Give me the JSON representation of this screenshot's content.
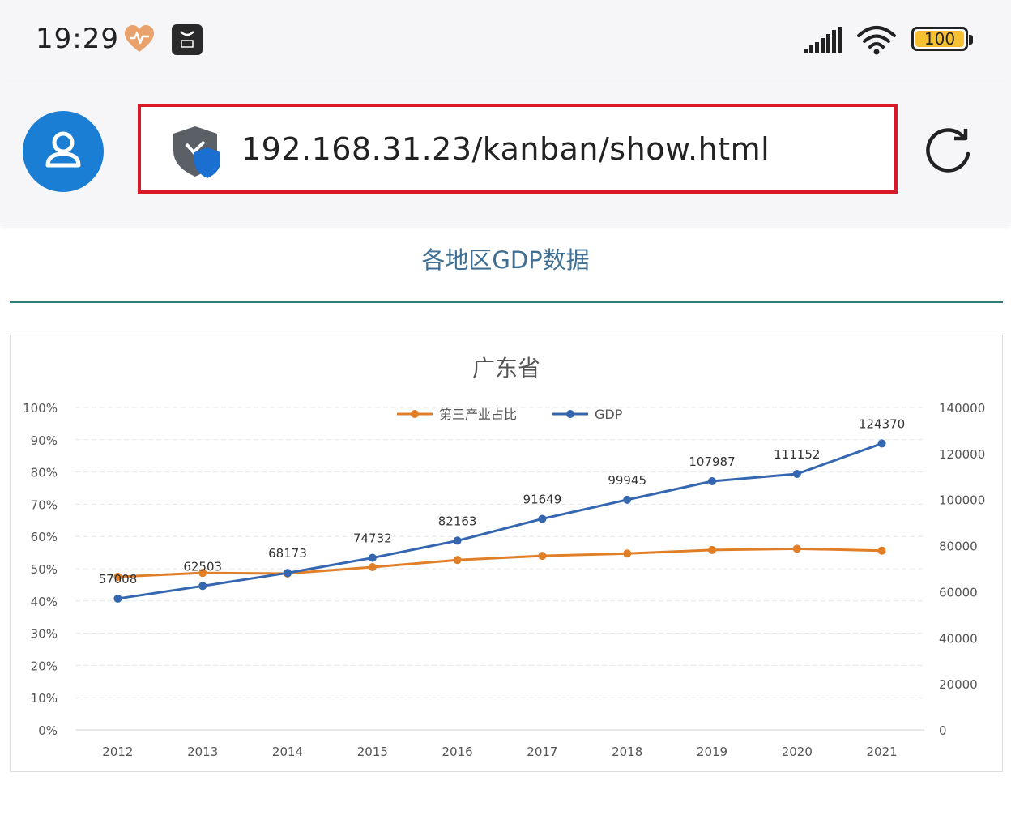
{
  "status_bar": {
    "time": "19:29",
    "battery": "100",
    "icons": [
      "heart-icon",
      "app-store-icon",
      "signal-icon",
      "wifi-icon",
      "battery-icon"
    ]
  },
  "browser": {
    "url": "192.168.31.23/kanban/show.html",
    "icons": [
      "avatar-icon",
      "shield-icon",
      "reload-icon"
    ],
    "url_highlight_color": "#d8192a"
  },
  "page": {
    "heading": "各地区GDP数据"
  },
  "colors": {
    "avatar": "#1a7fd4",
    "heading": "#3f6f92",
    "orange_series": "#e07f28",
    "blue_series": "#3566b0"
  },
  "chart_data": {
    "type": "line",
    "title": "广东省",
    "categories": [
      "2012",
      "2013",
      "2014",
      "2015",
      "2016",
      "2017",
      "2018",
      "2019",
      "2020",
      "2021"
    ],
    "series": [
      {
        "name": "第三产业占比",
        "axis": "left",
        "values": [
          47.5,
          48.7,
          48.5,
          50.5,
          52.7,
          54.0,
          54.7,
          55.8,
          56.2,
          55.6
        ],
        "color": "#e07f28"
      },
      {
        "name": "GDP",
        "axis": "right",
        "values": [
          57008,
          62503,
          68173,
          74732,
          82163,
          91649,
          99945,
          107987,
          111152,
          124370
        ],
        "data_labels": [
          "57008",
          "62503",
          "68173",
          "74732",
          "82163",
          "91649",
          "99945",
          "107987",
          "111152",
          "124370"
        ],
        "color": "#3566b0"
      }
    ],
    "y_left": {
      "min": 0,
      "max": 100,
      "ticks": [
        "0%",
        "10%",
        "20%",
        "30%",
        "40%",
        "50%",
        "60%",
        "70%",
        "80%",
        "90%",
        "100%"
      ]
    },
    "y_right": {
      "min": 0,
      "max": 140000,
      "ticks": [
        "0",
        "20000",
        "40000",
        "60000",
        "80000",
        "100000",
        "120000",
        "140000"
      ]
    },
    "grid": true,
    "legend_position": "top-center"
  }
}
